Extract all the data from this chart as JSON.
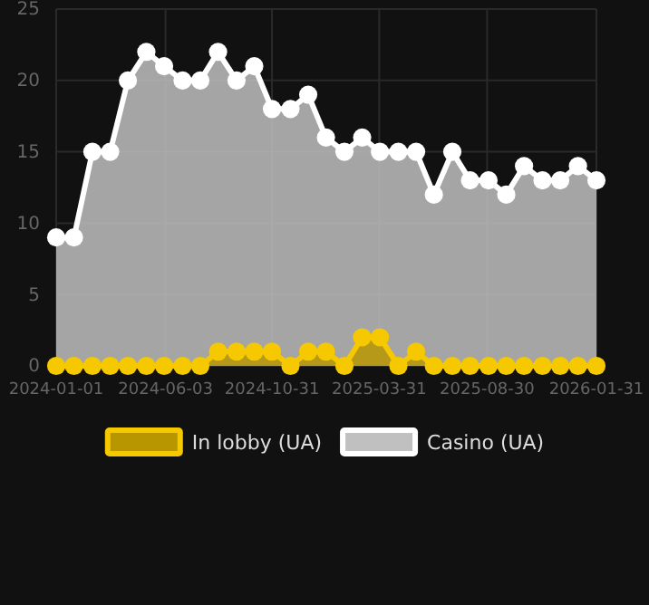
{
  "chart_data": {
    "type": "area",
    "x": [
      "2024-01-01",
      "2024-01-26",
      "2024-02-21",
      "2024-03-17",
      "2024-04-11",
      "2024-05-07",
      "2024-06-01",
      "2024-06-27",
      "2024-07-22",
      "2024-08-16",
      "2024-09-11",
      "2024-10-06",
      "2024-10-31",
      "2024-11-26",
      "2024-12-21",
      "2025-01-15",
      "2025-02-10",
      "2025-03-07",
      "2025-04-01",
      "2025-04-27",
      "2025-05-22",
      "2025-06-16",
      "2025-07-12",
      "2025-08-06",
      "2025-09-01",
      "2025-09-26",
      "2025-10-21",
      "2025-11-16",
      "2025-12-11",
      "2026-01-05",
      "2026-01-31"
    ],
    "series": [
      {
        "name": "In lobby (UA)",
        "color": "#f5c800",
        "values": [
          0,
          0,
          0,
          0,
          0,
          0,
          0,
          0,
          0,
          1,
          1,
          1,
          1,
          0,
          1,
          1,
          0,
          2,
          2,
          0,
          1,
          0,
          0,
          0,
          0,
          0,
          0,
          0,
          0,
          0,
          0
        ]
      },
      {
        "name": "Casino (UA)",
        "color": "#ffffff",
        "values": [
          9,
          9,
          15,
          15,
          20,
          22,
          21,
          20,
          20,
          22,
          20,
          21,
          18,
          18,
          19,
          16,
          15,
          16,
          15,
          15,
          15,
          12,
          15,
          13,
          13,
          12,
          14,
          13,
          13,
          14,
          13
        ]
      }
    ],
    "xlim": [
      "2024-01-01",
      "2026-01-31"
    ],
    "xticks": [
      {
        "value": "2024-01-01",
        "label": "2024-01-01"
      },
      {
        "value": "2024-06-03",
        "label": "2024-06-03"
      },
      {
        "value": "2024-10-31",
        "label": "2024-10-31"
      },
      {
        "value": "2025-03-31",
        "label": "2025-03-31"
      },
      {
        "value": "2025-08-30",
        "label": "2025-08-30"
      },
      {
        "value": "2026-01-31",
        "label": "2026-01-31"
      }
    ],
    "ylim": [
      0,
      25
    ],
    "yticks": [
      0,
      5,
      10,
      15,
      20,
      25
    ],
    "grid": true,
    "legend": "bottom",
    "marker": "circle"
  }
}
